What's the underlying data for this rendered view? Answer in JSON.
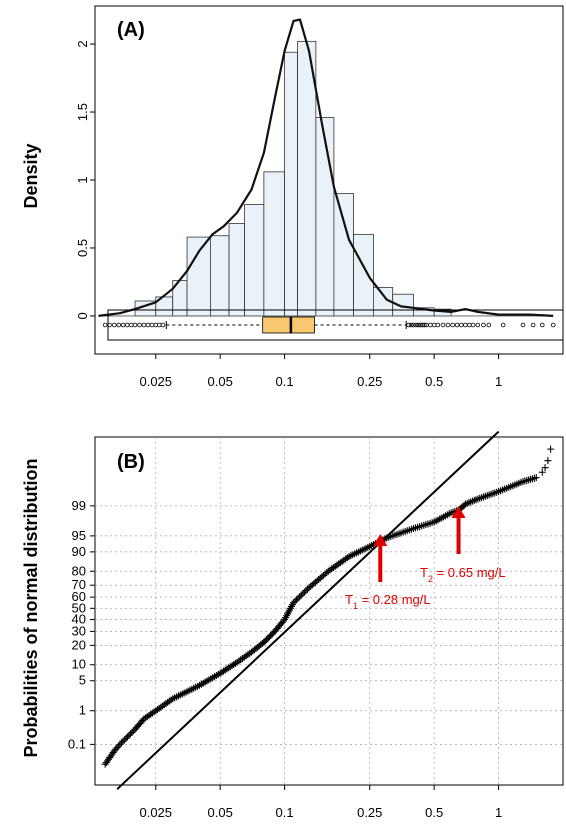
{
  "chart_data": [
    {
      "type": "histogram",
      "panel_label": "(A)",
      "ylabel": "Density",
      "xlabel": "",
      "x_scale": "log",
      "xlim": [
        0.013,
        2.0
      ],
      "ylim": [
        -0.28,
        2.28
      ],
      "x_ticks": [
        0.025,
        0.05,
        0.1,
        0.25,
        0.5,
        1
      ],
      "x_tick_labels": [
        "0.025",
        "0.05",
        "0.1",
        "0.25",
        "0.5",
        "1"
      ],
      "y_ticks": [
        0,
        0.5,
        1,
        1.5,
        2
      ],
      "y_tick_labels": [
        "0",
        "0.5",
        "1",
        "1.5",
        "2"
      ],
      "bins": [
        {
          "x0": 0.02,
          "x1": 0.025,
          "density": 0.11
        },
        {
          "x0": 0.025,
          "x1": 0.03,
          "density": 0.14
        },
        {
          "x0": 0.03,
          "x1": 0.035,
          "density": 0.26
        },
        {
          "x0": 0.035,
          "x1": 0.045,
          "density": 0.58
        },
        {
          "x0": 0.045,
          "x1": 0.055,
          "density": 0.59
        },
        {
          "x0": 0.055,
          "x1": 0.065,
          "density": 0.68
        },
        {
          "x0": 0.065,
          "x1": 0.08,
          "density": 0.82
        },
        {
          "x0": 0.08,
          "x1": 0.1,
          "density": 1.06
        },
        {
          "x0": 0.1,
          "x1": 0.115,
          "density": 1.94
        },
        {
          "x0": 0.115,
          "x1": 0.14,
          "density": 2.02
        },
        {
          "x0": 0.14,
          "x1": 0.17,
          "density": 1.46
        },
        {
          "x0": 0.17,
          "x1": 0.21,
          "density": 0.9
        },
        {
          "x0": 0.21,
          "x1": 0.26,
          "density": 0.6
        },
        {
          "x0": 0.26,
          "x1": 0.32,
          "density": 0.21
        },
        {
          "x0": 0.32,
          "x1": 0.4,
          "density": 0.16
        },
        {
          "x0": 0.4,
          "x1": 0.5,
          "density": 0.06
        },
        {
          "x0": 0.5,
          "x1": 0.6,
          "density": 0.05
        }
      ],
      "density_curve": [
        [
          0.0135,
          0.0
        ],
        [
          0.017,
          0.02
        ],
        [
          0.02,
          0.05
        ],
        [
          0.025,
          0.1
        ],
        [
          0.03,
          0.2
        ],
        [
          0.035,
          0.33
        ],
        [
          0.04,
          0.48
        ],
        [
          0.046,
          0.6
        ],
        [
          0.052,
          0.66
        ],
        [
          0.06,
          0.76
        ],
        [
          0.07,
          0.93
        ],
        [
          0.08,
          1.2
        ],
        [
          0.09,
          1.6
        ],
        [
          0.1,
          1.95
        ],
        [
          0.11,
          2.17
        ],
        [
          0.118,
          2.18
        ],
        [
          0.13,
          1.95
        ],
        [
          0.15,
          1.4
        ],
        [
          0.17,
          0.95
        ],
        [
          0.2,
          0.56
        ],
        [
          0.25,
          0.28
        ],
        [
          0.3,
          0.12
        ],
        [
          0.35,
          0.07
        ],
        [
          0.4,
          0.06
        ],
        [
          0.5,
          0.04
        ],
        [
          0.6,
          0.03
        ],
        [
          0.7,
          0.05
        ],
        [
          0.8,
          0.03
        ],
        [
          1.0,
          0.01
        ],
        [
          1.4,
          0.01
        ],
        [
          1.8,
          0.0
        ]
      ],
      "boxplot": {
        "q1": 0.079,
        "median": 0.107,
        "q3": 0.138,
        "whisker_low": 0.028,
        "whisker_high": 0.37,
        "outliers_low": [
          0.0145,
          0.0152,
          0.016,
          0.0168,
          0.0176,
          0.0184,
          0.0192,
          0.02,
          0.021,
          0.022,
          0.023,
          0.024,
          0.025,
          0.026,
          0.027
        ],
        "outliers_high": [
          0.38,
          0.39,
          0.4,
          0.41,
          0.42,
          0.43,
          0.44,
          0.45,
          0.46,
          0.48,
          0.5,
          0.52,
          0.55,
          0.58,
          0.61,
          0.64,
          0.67,
          0.7,
          0.73,
          0.76,
          0.8,
          0.85,
          0.9,
          1.05,
          1.3,
          1.45,
          1.6,
          1.8
        ]
      }
    },
    {
      "type": "scatter",
      "panel_label": "(B)",
      "ylabel": "Probabilities of normal distribution",
      "xlabel": "",
      "x_scale": "log",
      "y_scale": "probit",
      "xlim": [
        0.013,
        2.0
      ],
      "grid": true,
      "x_ticks": [
        0.025,
        0.05,
        0.1,
        0.25,
        0.5,
        1
      ],
      "x_tick_labels": [
        "0.025",
        "0.05",
        "0.1",
        "0.25",
        "0.5",
        "1"
      ],
      "y_ticks": [
        0.1,
        1,
        5,
        10,
        20,
        30,
        40,
        50,
        60,
        70,
        80,
        90,
        95,
        99
      ],
      "y_tick_labels": [
        "0.1",
        "1",
        "5",
        "10",
        "20",
        "30",
        "40",
        "50",
        "60",
        "70",
        "80",
        "90",
        "95",
        "99"
      ],
      "reference_line": [
        [
          0.0165,
          0.002
        ],
        [
          1.0,
          99.997
        ]
      ],
      "quantile_curve": [
        [
          0.0145,
          0.02
        ],
        [
          0.016,
          0.06
        ],
        [
          0.017,
          0.1
        ],
        [
          0.02,
          0.3
        ],
        [
          0.022,
          0.6
        ],
        [
          0.025,
          1.0
        ],
        [
          0.03,
          2.0
        ],
        [
          0.04,
          4.0
        ],
        [
          0.05,
          7.0
        ],
        [
          0.06,
          11.0
        ],
        [
          0.07,
          16.0
        ],
        [
          0.08,
          22.0
        ],
        [
          0.09,
          30.0
        ],
        [
          0.1,
          40.0
        ],
        [
          0.11,
          55.0
        ],
        [
          0.13,
          68.0
        ],
        [
          0.16,
          80.0
        ],
        [
          0.2,
          88.0
        ],
        [
          0.25,
          92.0
        ],
        [
          0.3,
          94.5
        ],
        [
          0.4,
          96.5
        ],
        [
          0.5,
          97.5
        ],
        [
          0.6,
          98.5
        ],
        [
          0.65,
          98.7
        ],
        [
          0.7,
          99.1
        ],
        [
          0.8,
          99.35
        ],
        [
          1.0,
          99.6
        ],
        [
          1.3,
          99.8
        ],
        [
          1.5,
          99.85
        ]
      ],
      "top_tail_points": [
        [
          1.6,
          99.9
        ],
        [
          1.65,
          99.93
        ],
        [
          1.7,
          99.96
        ],
        [
          1.75,
          99.985
        ]
      ],
      "annotations": [
        {
          "base": "T",
          "sub": "1",
          "rest": " = 0.28 mg/L",
          "x": 0.28
        },
        {
          "base": "T",
          "sub": "2",
          "rest": " = 0.65 mg/L",
          "x": 0.65
        }
      ],
      "annotation_color": "#e00000"
    }
  ],
  "colors": {
    "bar_fill": "#e8f2f8",
    "box_fill": "#f9c770",
    "grid": "#a0a0a0",
    "arrow": "#e00000"
  }
}
